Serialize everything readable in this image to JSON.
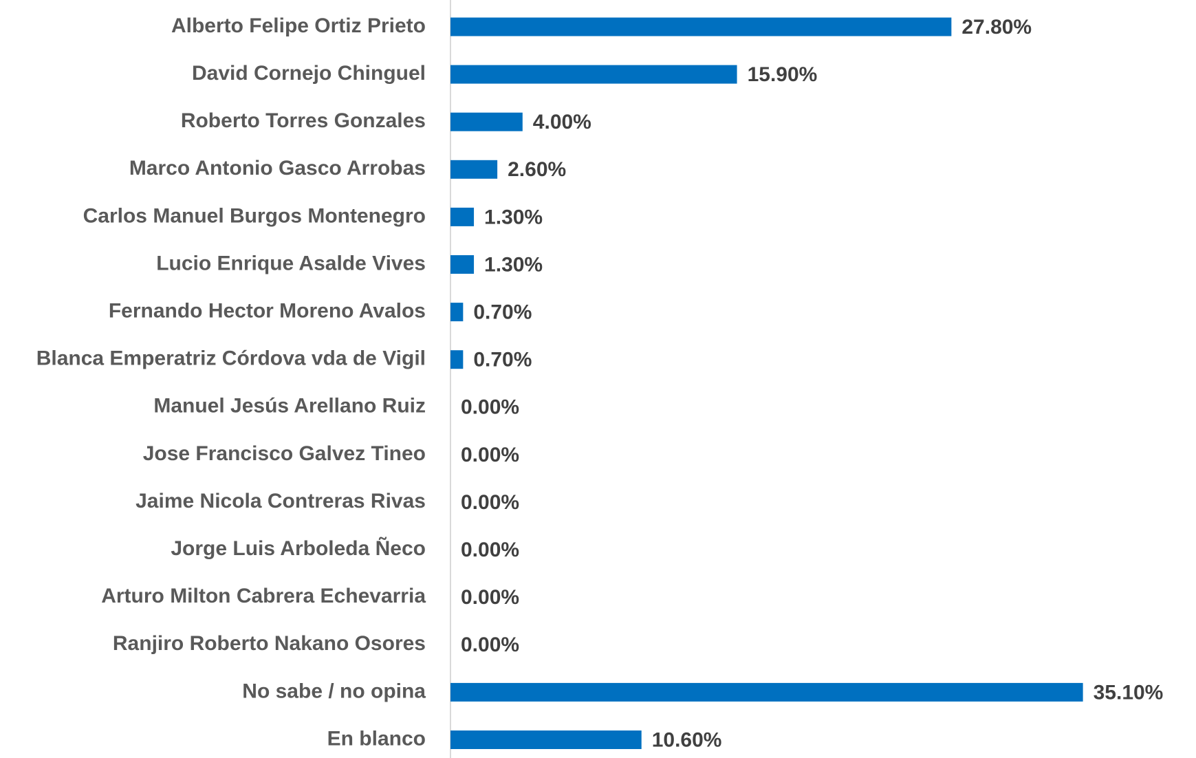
{
  "chart_data": {
    "type": "bar",
    "orientation": "horizontal",
    "color": "#0070c0",
    "categories": [
      "Alberto Felipe Ortiz Prieto",
      "David Cornejo Chinguel",
      "Roberto Torres Gonzales",
      "Marco Antonio Gasco Arrobas",
      "Carlos Manuel Burgos Montenegro",
      "Lucio Enrique Asalde Vives",
      "Fernando Hector Moreno Avalos",
      "Blanca Emperatriz Córdova vda de Vigil",
      "Manuel Jesús Arellano Ruiz",
      "Jose Francisco Galvez Tineo",
      "Jaime Nicola Contreras Rivas",
      "Jorge Luis Arboleda Ñeco",
      "Arturo Milton Cabrera Echevarria",
      "Ranjiro Roberto Nakano Osores",
      "No sabe / no opina",
      "En blanco"
    ],
    "values": [
      27.8,
      15.9,
      4.0,
      2.6,
      1.3,
      1.3,
      0.7,
      0.7,
      0.0,
      0.0,
      0.0,
      0.0,
      0.0,
      0.0,
      35.1,
      10.6
    ],
    "value_labels": [
      "27.80%",
      "15.90%",
      "4.00%",
      "2.60%",
      "1.30%",
      "1.30%",
      "0.70%",
      "0.70%",
      "0.00%",
      "0.00%",
      "0.00%",
      "0.00%",
      "0.00%",
      "0.00%",
      "35.10%",
      "10.60%"
    ]
  }
}
